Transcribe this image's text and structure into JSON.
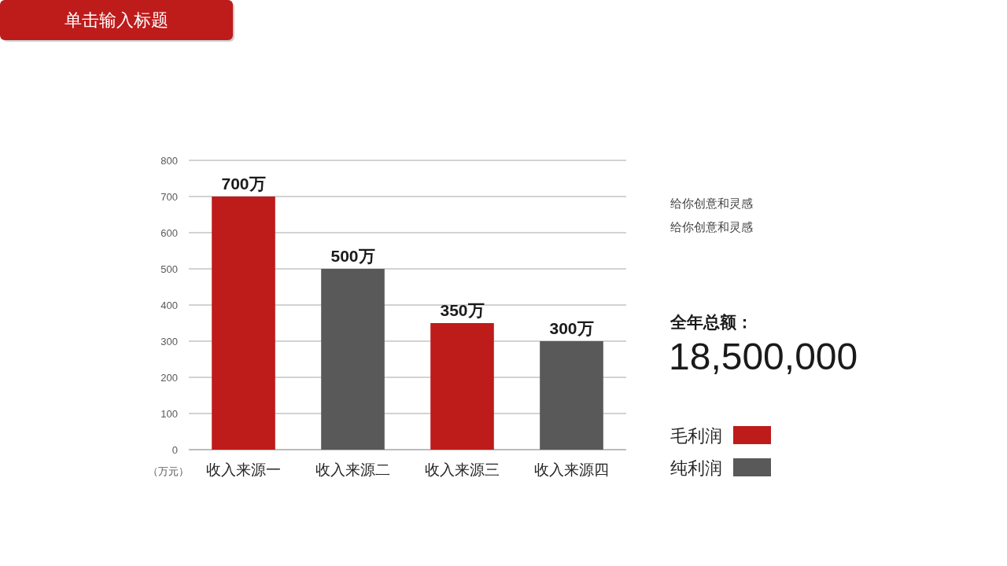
{
  "chart_data": {
    "type": "bar",
    "title": "单击输入标题",
    "ylabel": "（万元）",
    "categories": [
      "收入来源一",
      "收入来源二",
      "收入来源三",
      "收入来源四"
    ],
    "series": [
      {
        "name": "毛利润",
        "color": "#be1b1b",
        "values": [
          700,
          null,
          350,
          null
        ],
        "value_labels": [
          "700万",
          null,
          "350万",
          null
        ]
      },
      {
        "name": "纯利润",
        "color": "#595959",
        "values": [
          null,
          500,
          null,
          300
        ],
        "value_labels": [
          null,
          "500万",
          null,
          "300万"
        ]
      }
    ],
    "ylim": [
      0,
      800
    ],
    "yticks": [
      0,
      100,
      200,
      300,
      400,
      500,
      600,
      700,
      800
    ],
    "grid": "y",
    "legend": "right",
    "annotations": [
      "给你创意和灵感",
      "给你创意和灵感",
      "全年总额：",
      "18,500,000"
    ]
  }
}
